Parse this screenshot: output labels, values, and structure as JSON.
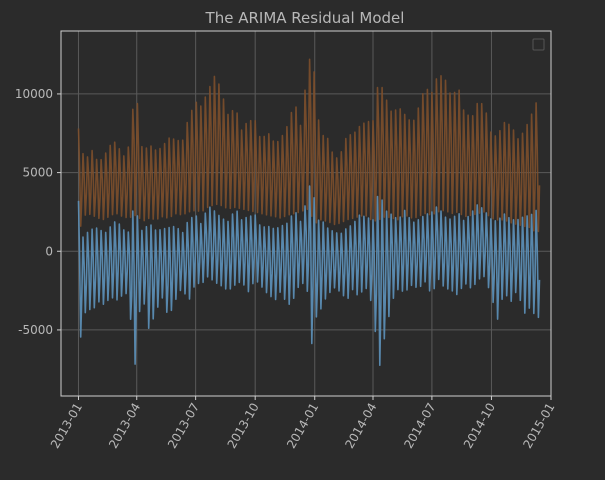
{
  "chart_data": {
    "type": "line",
    "title": "The ARIMA Residual Model",
    "xlabel": "",
    "ylabel": "",
    "x_range": [
      "2012-12-05",
      "2015-01-01"
    ],
    "ylim": [
      -9200,
      14000
    ],
    "grid": true,
    "legend": {
      "placement": "top-right",
      "entries": []
    },
    "x_ticks": [
      "2013-01",
      "2013-04",
      "2013-07",
      "2013-10",
      "2014-01",
      "2014-04",
      "2014-07",
      "2014-10",
      "2015-01"
    ],
    "y_ticks": [
      -5000,
      0,
      5000,
      10000
    ],
    "background_color": "#2b2b2b",
    "axes_color": "#cfcfcf",
    "grid_color": "#5a5a5a",
    "series": [
      {
        "color": "#5b8db4",
        "x": [
          "2013-01-01",
          "2013-01-08",
          "2013-01-15",
          "2013-01-22",
          "2013-02-01",
          "2013-02-10",
          "2013-02-20",
          "2013-03-01",
          "2013-03-10",
          "2013-03-20",
          "2013-03-28",
          "2013-04-03",
          "2013-04-10",
          "2013-04-20",
          "2013-05-01",
          "2013-05-10",
          "2013-05-20",
          "2013-06-01",
          "2013-06-10",
          "2013-06-20",
          "2013-07-01",
          "2013-07-10",
          "2013-07-20",
          "2013-08-01",
          "2013-08-10",
          "2013-08-20",
          "2013-09-01",
          "2013-09-10",
          "2013-09-20",
          "2013-10-01",
          "2013-10-10",
          "2013-10-20",
          "2013-11-01",
          "2013-11-10",
          "2013-11-20",
          "2013-12-01",
          "2013-12-10",
          "2013-12-20",
          "2013-12-28",
          "2014-01-03",
          "2014-01-10",
          "2014-01-20",
          "2014-02-01",
          "2014-02-10",
          "2014-02-20",
          "2014-03-01",
          "2014-03-10",
          "2014-03-20",
          "2014-04-01",
          "2014-04-10",
          "2014-04-20",
          "2014-05-01",
          "2014-05-10",
          "2014-05-20",
          "2014-06-01",
          "2014-06-10",
          "2014-06-20",
          "2014-07-01",
          "2014-07-10",
          "2014-07-20",
          "2014-08-01",
          "2014-08-10",
          "2014-08-20",
          "2014-09-01",
          "2014-09-10",
          "2014-09-20",
          "2014-10-01",
          "2014-10-10",
          "2014-10-20",
          "2014-11-01",
          "2014-11-10",
          "2014-11-20",
          "2014-12-01",
          "2014-12-08",
          "2014-12-15"
        ],
        "lows": [
          -6700,
          -4200,
          -3600,
          -3800,
          -3200,
          -3400,
          -2900,
          -3100,
          -2800,
          -2600,
          -8100,
          -4400,
          -2800,
          -5000,
          -3800,
          -2900,
          -4200,
          -3000,
          -2300,
          -3200,
          -2000,
          -2100,
          -1600,
          -2000,
          -2200,
          -2500,
          -2100,
          -1900,
          -2600,
          -1800,
          -2200,
          -2700,
          -3100,
          -2500,
          -3500,
          -2900,
          -1900,
          -2300,
          -6100,
          -4200,
          -3700,
          -2800,
          -2300,
          -2600,
          -3100,
          -2400,
          -2900,
          -2200,
          -3500,
          -7600,
          -5200,
          -3100,
          -2400,
          -2600,
          -2100,
          -2400,
          -1900,
          -2800,
          -1700,
          -2300,
          -2500,
          -2800,
          -2000,
          -2400,
          -1800,
          -1600,
          -2800,
          -4400,
          -2600,
          -3200,
          -2400,
          -4000,
          -3500,
          -4200,
          -4200
        ],
        "highs": [
          3200,
          900,
          1200,
          1400,
          1500,
          1100,
          1600,
          2000,
          1400,
          1200,
          3000,
          2100,
          1200,
          1800,
          1300,
          1400,
          1500,
          1600,
          1100,
          2000,
          2300,
          1700,
          2900,
          2500,
          2100,
          1900,
          2700,
          2000,
          2200,
          2300,
          1500,
          1600,
          1400,
          1600,
          1800,
          2600,
          1900,
          3300,
          5000,
          1800,
          2100,
          1500,
          1200,
          1100,
          1500,
          1700,
          2300,
          2200,
          2000,
          3900,
          2600,
          2300,
          2000,
          2600,
          1800,
          2000,
          2300,
          2500,
          2900,
          2200,
          2000,
          2500,
          1900,
          2500,
          3000,
          2600,
          2000,
          1900,
          2400,
          2000,
          2000,
          2200,
          2300,
          2600,
          2600
        ]
      },
      {
        "color": "#7d4f2b",
        "x": [
          "2013-01-01",
          "2013-01-08",
          "2013-01-15",
          "2013-01-22",
          "2013-02-01",
          "2013-02-10",
          "2013-02-20",
          "2013-03-01",
          "2013-03-10",
          "2013-03-20",
          "2013-03-28",
          "2013-04-03",
          "2013-04-10",
          "2013-04-20",
          "2013-05-01",
          "2013-05-10",
          "2013-05-20",
          "2013-06-01",
          "2013-06-10",
          "2013-06-20",
          "2013-07-01",
          "2013-07-10",
          "2013-07-20",
          "2013-08-01",
          "2013-08-10",
          "2013-08-20",
          "2013-09-01",
          "2013-09-10",
          "2013-09-20",
          "2013-10-01",
          "2013-10-10",
          "2013-10-20",
          "2013-11-01",
          "2013-11-10",
          "2013-11-20",
          "2013-12-01",
          "2013-12-10",
          "2013-12-20",
          "2013-12-28",
          "2014-01-03",
          "2014-01-10",
          "2014-01-20",
          "2014-02-01",
          "2014-02-10",
          "2014-02-20",
          "2014-03-01",
          "2014-03-10",
          "2014-03-20",
          "2014-04-01",
          "2014-04-10",
          "2014-04-20",
          "2014-05-01",
          "2014-05-10",
          "2014-05-20",
          "2014-06-01",
          "2014-06-10",
          "2014-06-20",
          "2014-07-01",
          "2014-07-10",
          "2014-07-20",
          "2014-08-01",
          "2014-08-10",
          "2014-08-20",
          "2014-09-01",
          "2014-09-10",
          "2014-09-20",
          "2014-10-01",
          "2014-10-10",
          "2014-10-20",
          "2014-11-01",
          "2014-11-10",
          "2014-11-20",
          "2014-12-01",
          "2014-12-08",
          "2014-12-15"
        ],
        "lows": [
          1000,
          2200,
          2400,
          2300,
          2100,
          2000,
          2300,
          2400,
          2200,
          2100,
          2300,
          2200,
          1900,
          2100,
          2000,
          2200,
          2100,
          2400,
          2300,
          2500,
          2600,
          2500,
          2800,
          3000,
          2900,
          2700,
          2800,
          2700,
          2600,
          2500,
          2400,
          2300,
          2200,
          2100,
          2300,
          2400,
          2500,
          2700,
          2200,
          1800,
          2000,
          1900,
          1700,
          1800,
          2000,
          2100,
          2200,
          2300,
          1900,
          2000,
          2200,
          2100,
          2000,
          2300,
          2100,
          2200,
          2400,
          2300,
          2500,
          2600,
          2400,
          2500,
          2200,
          2300,
          2400,
          2500,
          2100,
          2000,
          2000,
          1800,
          1700,
          1600,
          1500,
          1200,
          1300
        ],
        "highs": [
          7800,
          6200,
          6000,
          6400,
          5600,
          6100,
          6800,
          7000,
          5900,
          6700,
          9800,
          9300,
          6200,
          6800,
          6400,
          6600,
          7200,
          7100,
          6900,
          8500,
          9500,
          9200,
          10200,
          11300,
          10100,
          8700,
          9100,
          7700,
          8300,
          8300,
          7000,
          7600,
          6800,
          7200,
          8000,
          9500,
          8000,
          11200,
          13200,
          9600,
          7400,
          7300,
          5800,
          6200,
          7400,
          7400,
          7900,
          8200,
          8300,
          11000,
          9800,
          8700,
          9200,
          8700,
          8100,
          9100,
          10400,
          10100,
          11200,
          11100,
          9700,
          10600,
          8800,
          8500,
          9500,
          9300,
          7400,
          7300,
          8200,
          8000,
          7100,
          7600,
          8600,
          9400,
          9600
        ]
      }
    ]
  }
}
